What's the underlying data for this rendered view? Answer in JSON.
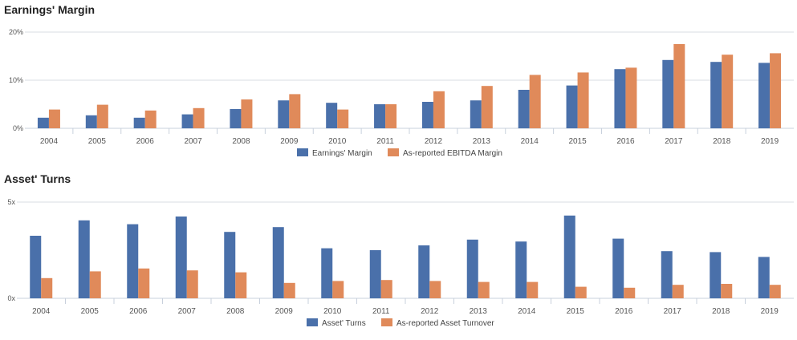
{
  "chart_data": [
    {
      "type": "bar",
      "title": "Earnings' Margin",
      "categories": [
        "2004",
        "2005",
        "2006",
        "2007",
        "2008",
        "2009",
        "2010",
        "2011",
        "2012",
        "2013",
        "2014",
        "2015",
        "2016",
        "2017",
        "2018",
        "2019"
      ],
      "series": [
        {
          "name": "Earnings' Margin",
          "color": "#4a70aa",
          "values": [
            2.2,
            2.7,
            2.2,
            2.9,
            4.0,
            5.8,
            5.3,
            5.0,
            5.5,
            5.8,
            8.0,
            8.9,
            12.3,
            14.2,
            13.8,
            13.6
          ]
        },
        {
          "name": "As-reported EBITDA Margin",
          "color": "#e08a5a",
          "values": [
            3.9,
            4.9,
            3.7,
            4.2,
            6.0,
            7.1,
            3.9,
            5.0,
            7.7,
            8.8,
            11.1,
            11.6,
            12.6,
            17.5,
            15.3,
            15.6
          ]
        }
      ],
      "ylim": [
        0,
        20
      ],
      "yticks": [
        "0%",
        "10%",
        "20%"
      ],
      "ytick_values": [
        0,
        10,
        20
      ],
      "legend": "bottom-center",
      "grid": true
    },
    {
      "type": "bar",
      "title": "Asset' Turns",
      "categories": [
        "2004",
        "2005",
        "2006",
        "2007",
        "2008",
        "2009",
        "2010",
        "2011",
        "2012",
        "2013",
        "2014",
        "2015",
        "2016",
        "2017",
        "2018",
        "2019"
      ],
      "series": [
        {
          "name": "Asset' Turns",
          "color": "#4a70aa",
          "values": [
            3.25,
            4.05,
            3.85,
            4.25,
            3.45,
            3.7,
            2.6,
            2.5,
            2.75,
            3.05,
            2.95,
            4.3,
            3.1,
            2.45,
            2.4,
            2.15
          ]
        },
        {
          "name": "As-reported Asset Turnover",
          "color": "#e08a5a",
          "values": [
            1.05,
            1.4,
            1.55,
            1.45,
            1.35,
            0.8,
            0.9,
            0.95,
            0.9,
            0.85,
            0.85,
            0.6,
            0.55,
            0.7,
            0.75,
            0.7
          ]
        }
      ],
      "ylim": [
        0,
        5
      ],
      "yticks": [
        "0x",
        "5x"
      ],
      "ytick_values": [
        0,
        5
      ],
      "legend": "bottom-center",
      "grid": true
    }
  ]
}
